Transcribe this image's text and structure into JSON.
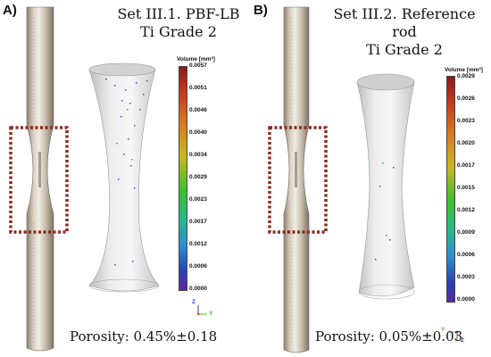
{
  "panel_a": {
    "letter": "A)",
    "title_line1": "Set III.1. PBF-LB",
    "title_line2": "Ti Grade 2",
    "porosity": "Porosity: 0.45%±0.18",
    "colorbar": {
      "title": "Volume [mm³]",
      "ticks": [
        "0.0057",
        "0.0051",
        "0.0046",
        "0.0040",
        "0.0034",
        "0.0029",
        "0.0023",
        "0.0017",
        "0.0012",
        "0.0006",
        "0.0000"
      ]
    },
    "axes_labels": {
      "z": "Z",
      "y": "Y"
    }
  },
  "panel_b": {
    "letter": "B)",
    "title_line1": "Set III.2. Reference rod",
    "title_line2": "Ti Grade 2",
    "porosity": "Porosity: 0.05%±0.03",
    "colorbar": {
      "title": "Volume [mm³]",
      "ticks": [
        "0.0029",
        "0.0026",
        "0.0023",
        "0.0020",
        "0.0017",
        "0.0015",
        "0.0012",
        "0.0009",
        "0.0006",
        "0.0003",
        "0.0000"
      ]
    },
    "axes_labels": {
      "z": "Z",
      "y": "Y"
    }
  },
  "colors": {
    "highlight_box": "#8b2a1a",
    "rod_metal": "#c9beaf",
    "ct_body": "#e6e6e6"
  }
}
